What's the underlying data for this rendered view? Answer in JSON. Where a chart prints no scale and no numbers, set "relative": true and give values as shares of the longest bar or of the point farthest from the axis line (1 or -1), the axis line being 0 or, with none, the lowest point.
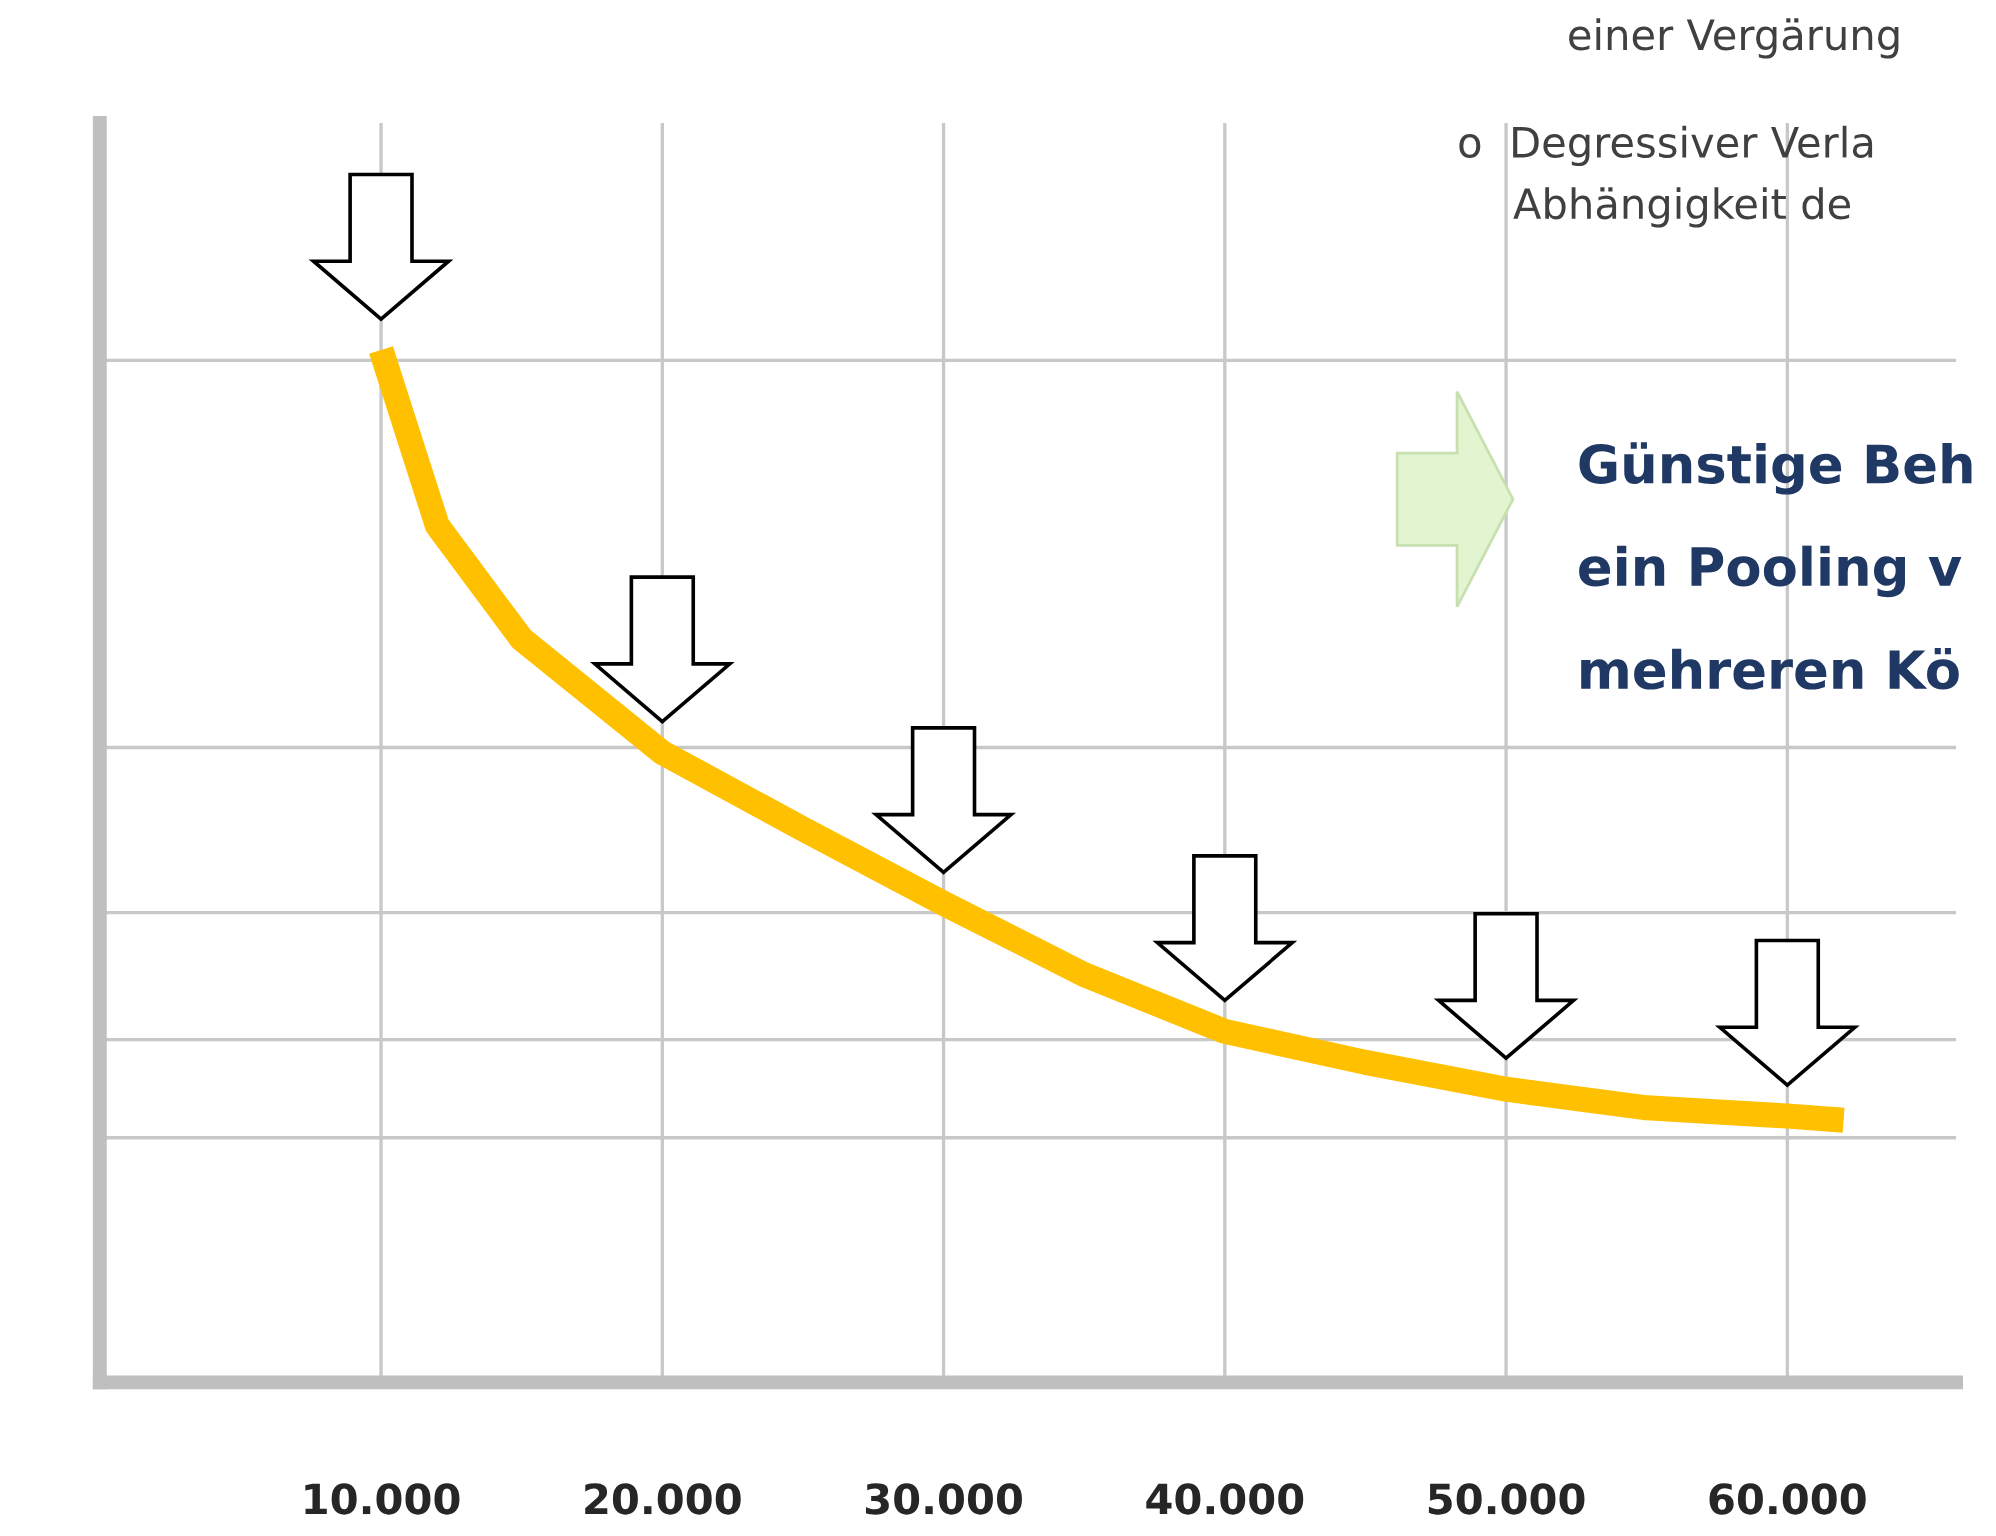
{
  "chart_data": {
    "type": "line",
    "relative": true,
    "x": [
      10000,
      12000,
      15000,
      20000,
      25000,
      30000,
      35000,
      40000,
      45000,
      50000,
      55000,
      60000,
      62000
    ],
    "xlim": [
      0,
      66000
    ],
    "xticks": [
      {
        "value": 10000,
        "label": "10.000"
      },
      {
        "value": 20000,
        "label": "20.000"
      },
      {
        "value": 30000,
        "label": "30.000"
      },
      {
        "value": 40000,
        "label": "40.000"
      },
      {
        "value": 50000,
        "label": "50.000"
      },
      {
        "value": 60000,
        "label": "60.000"
      }
    ],
    "tick_labels": "x",
    "series": [
      {
        "color": "#ffc000",
        "values": [
          1.0,
          0.83,
          0.72,
          0.61,
          0.536,
          0.464,
          0.395,
          0.34,
          0.31,
          0.284,
          0.266,
          0.258,
          0.254
        ]
      }
    ],
    "ref_lines": [
      {
        "axis": "y",
        "value": 0.99,
        "color": "#c8c8c8"
      },
      {
        "axis": "y",
        "value": 0.615,
        "color": "#c8c8c8"
      },
      {
        "axis": "y",
        "value": 0.455,
        "color": "#c8c8c8"
      },
      {
        "axis": "y",
        "value": 0.332,
        "color": "#c8c8c8"
      },
      {
        "axis": "y",
        "value": 0.237,
        "color": "#c8c8c8"
      }
    ],
    "grid": "x",
    "legend": false,
    "marker": "none",
    "line_style": "solid",
    "annotations": [
      "einer Vergärung",
      "o  Degressiver Verla",
      "Abhängigkeit de",
      "Günstige Beh",
      "ein Pooling v",
      "mehreren Kö"
    ]
  }
}
